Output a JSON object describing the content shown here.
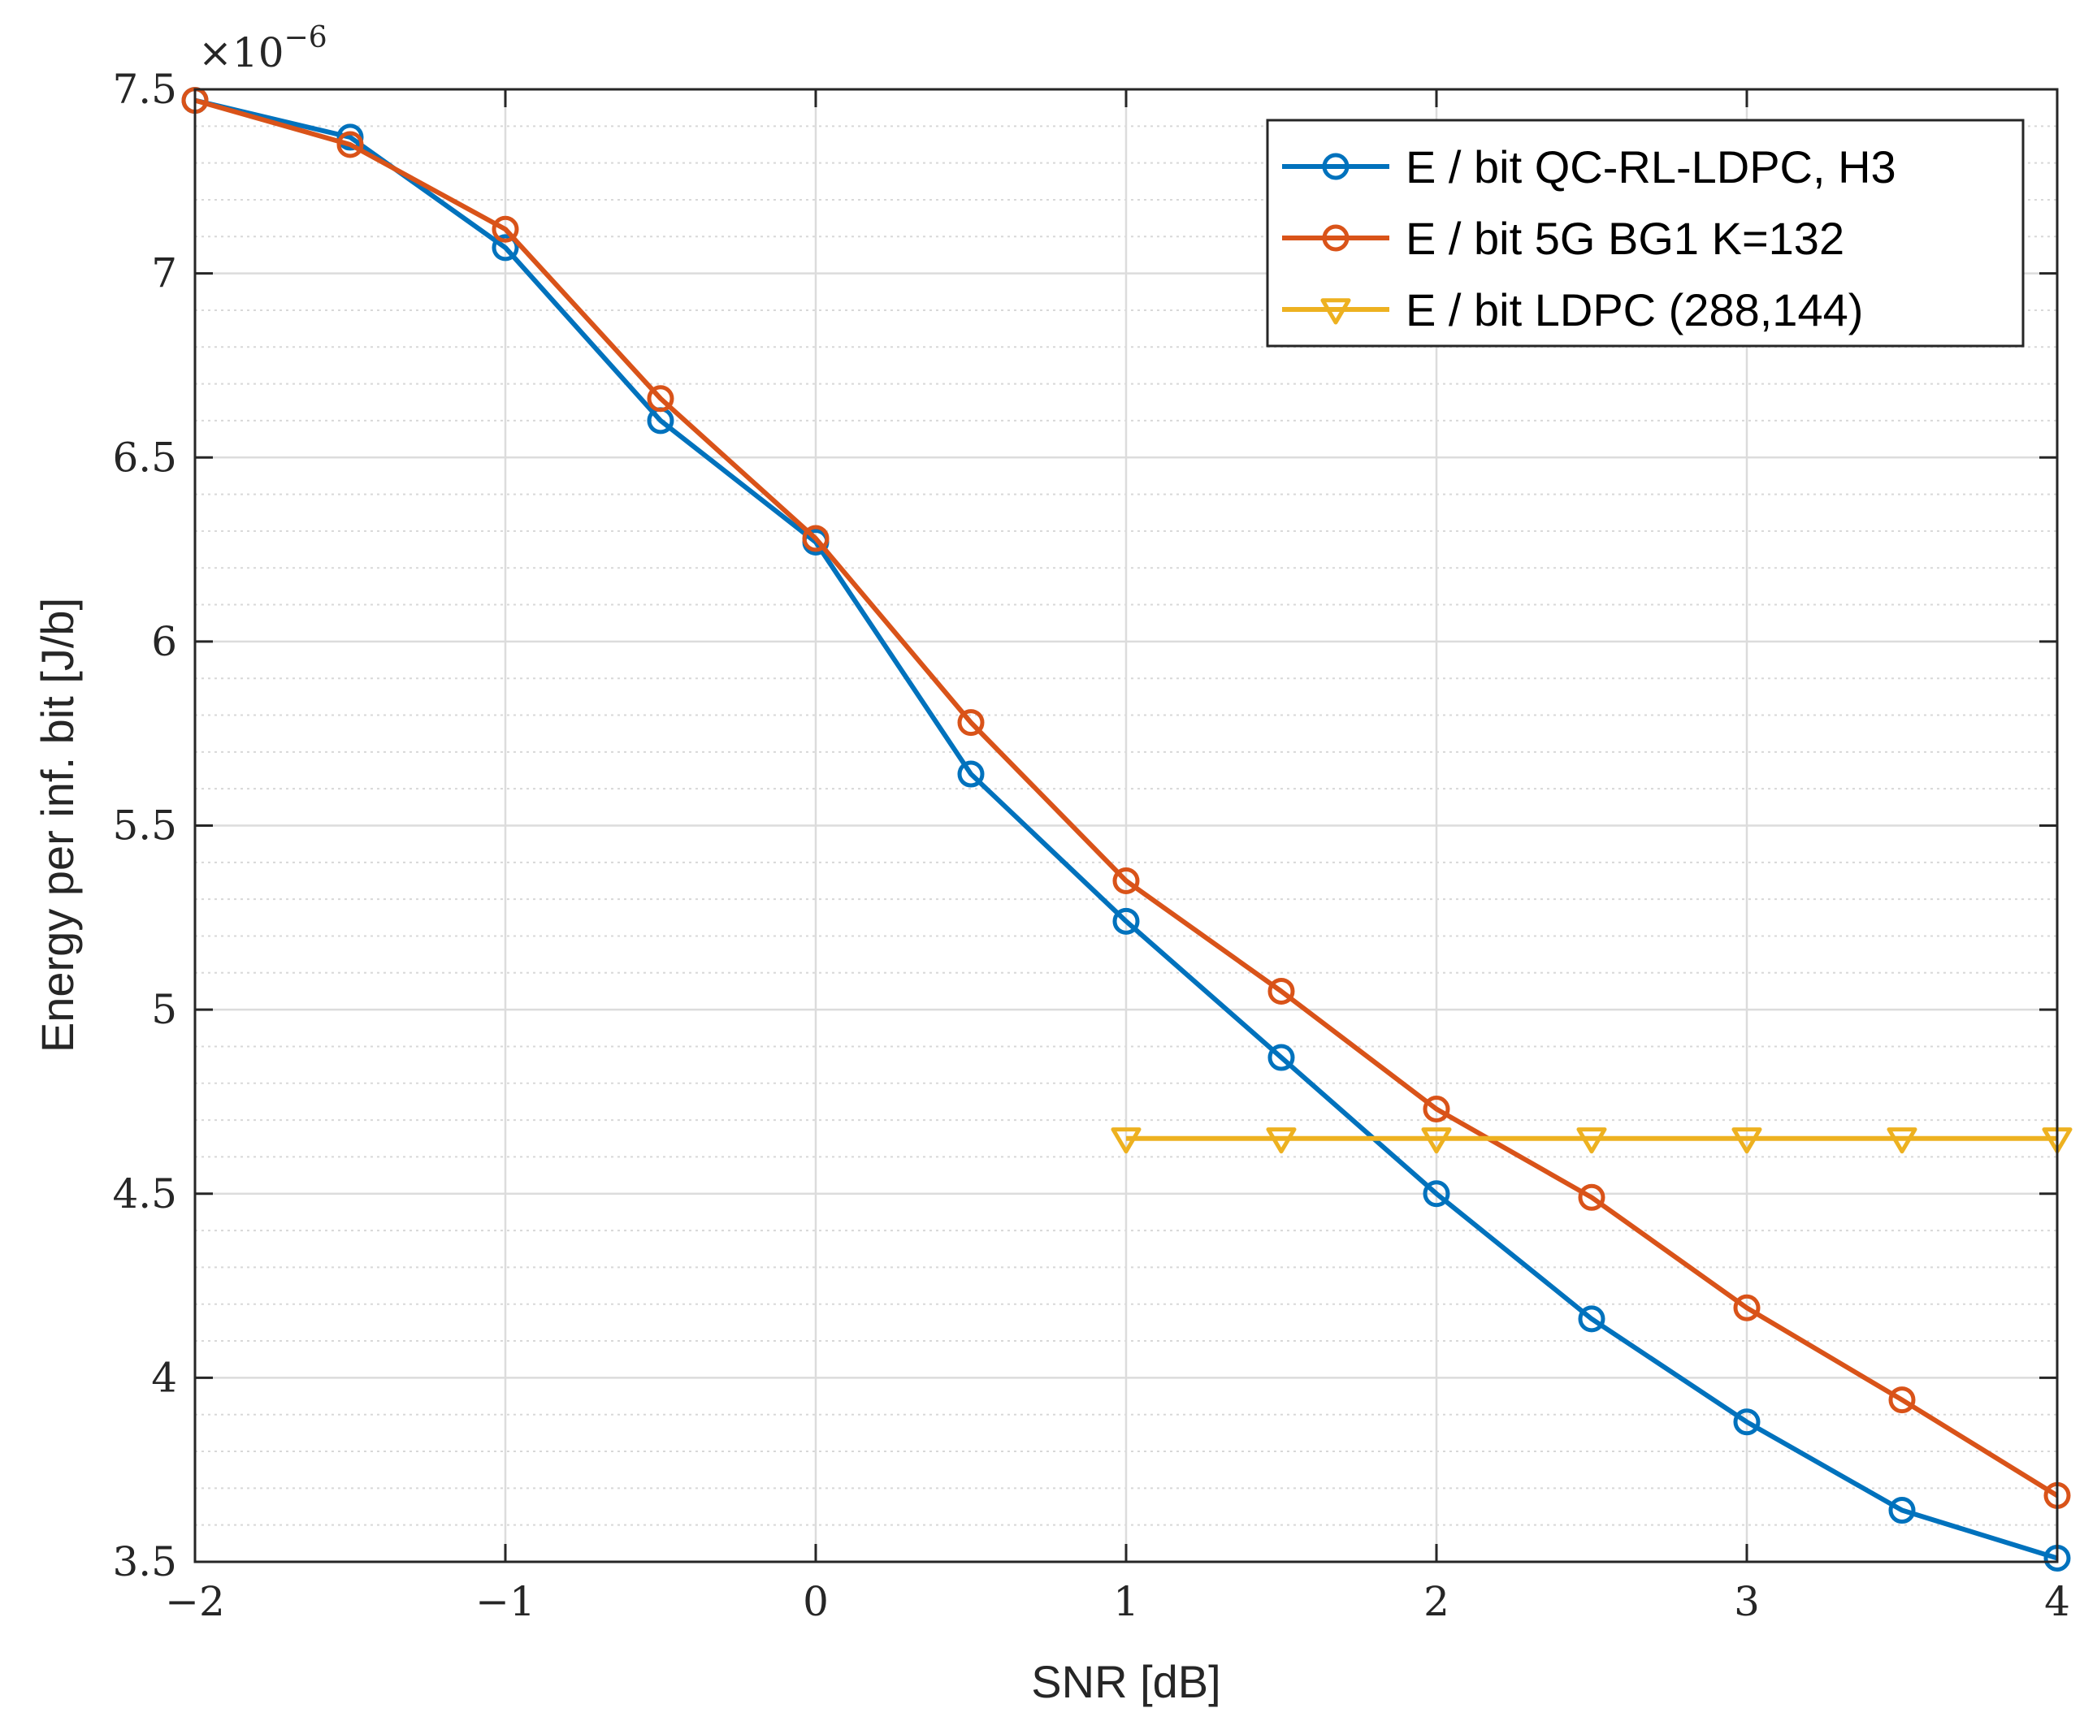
{
  "chart_data": {
    "type": "line",
    "xlabel": "SNR [dB]",
    "ylabel": "Energy per inf. bit [J/b]",
    "y_multiplier_base": "×10",
    "y_multiplier_exponent": "−6",
    "xlim": [
      -2,
      4
    ],
    "ylim": [
      3.5,
      7.5
    ],
    "x_ticks": [
      -2,
      -1,
      0,
      1,
      2,
      3,
      4
    ],
    "x_tick_labels": [
      "−2",
      "−1",
      "0",
      "1",
      "2",
      "3",
      "4"
    ],
    "y_ticks": [
      3.5,
      4,
      4.5,
      5,
      5.5,
      6,
      6.5,
      7,
      7.5
    ],
    "y_tick_labels": [
      "3.5",
      "4",
      "4.5",
      "5",
      "5.5",
      "6",
      "6.5",
      "7",
      "7.5"
    ],
    "grid": true,
    "minor_grid_y": true,
    "legend_position": "top-right",
    "series": [
      {
        "name": "E / bit QC-RL-LDPC, H3",
        "color": "#0072BD",
        "marker": "circle",
        "x": [
          -2,
          -1.5,
          -1,
          -0.5,
          0,
          0.5,
          1,
          1.5,
          2,
          2.5,
          3,
          3.5,
          4
        ],
        "y": [
          7.47,
          7.37,
          7.07,
          6.6,
          6.27,
          5.64,
          5.24,
          4.87,
          4.5,
          4.16,
          3.88,
          3.64,
          3.51
        ]
      },
      {
        "name": "E / bit 5G BG1 K=132",
        "color": "#D95319",
        "marker": "circle",
        "x": [
          -2,
          -1.5,
          -1,
          -0.5,
          0,
          0.5,
          1,
          1.5,
          2,
          2.5,
          3,
          3.5,
          4
        ],
        "y": [
          7.47,
          7.35,
          7.12,
          6.66,
          6.28,
          5.78,
          5.35,
          5.05,
          4.73,
          4.49,
          4.19,
          3.94,
          3.68
        ]
      },
      {
        "name": "E / bit LDPC (288,144)",
        "color": "#EDB120",
        "marker": "triangle-down",
        "x": [
          1,
          1.5,
          2,
          2.5,
          3,
          3.5,
          4
        ],
        "y": [
          4.65,
          4.65,
          4.65,
          4.65,
          4.65,
          4.65,
          4.65
        ]
      }
    ]
  }
}
